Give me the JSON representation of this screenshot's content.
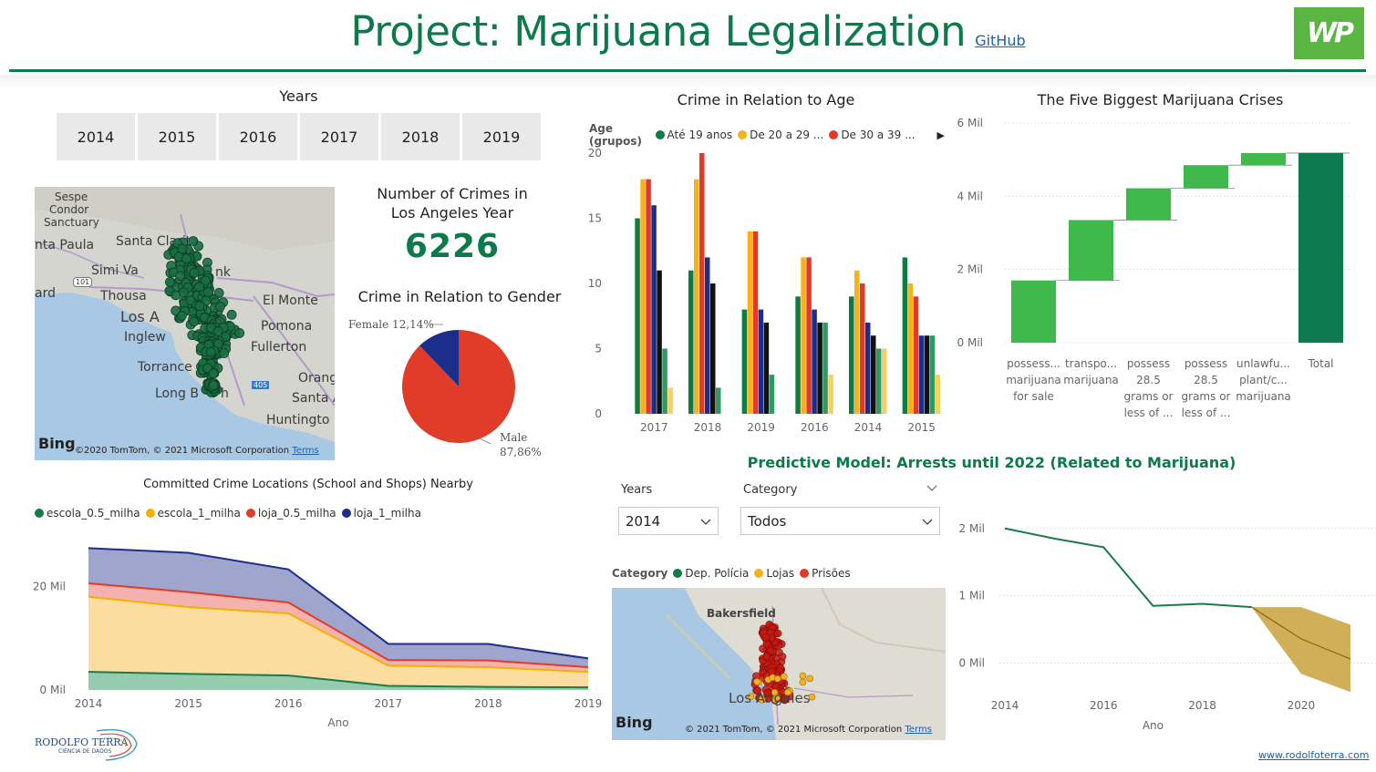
{
  "header": {
    "title": "Project: Marijuana Legalization",
    "github_label": "GitHub",
    "logo_text": "WP"
  },
  "years_slicer": {
    "title": "Years",
    "options": [
      "2014",
      "2015",
      "2016",
      "2017",
      "2018",
      "2019"
    ]
  },
  "map_la": {
    "labels": [
      "Sespe",
      "Condor",
      "Sanctuary",
      "nta Paula",
      "Santa Clarita",
      "Simi Va",
      "nk",
      "101",
      "ard",
      "Thousa",
      "El Monte",
      "Los A",
      "Pomona",
      "Inglew",
      "Fullerton",
      "Torrance",
      "Orang",
      "Long B",
      "h",
      "405",
      "Santa A",
      "Huntingto"
    ],
    "bing_label": "Bing",
    "copyright": "©2020 TomTom, © 2021 Microsoft Corporation",
    "terms_label": "Terms",
    "marker_color": "#1a6e43"
  },
  "kpi": {
    "label": "Number of Crimes in Los Angeles Year",
    "value": "6226"
  },
  "gender_pie": {
    "title": "Crime in Relation to Gender",
    "female_label": "Female 12,14%",
    "male_label": "Male",
    "male_pct_label": "87,86%",
    "chart_data": {
      "type": "pie",
      "slices": [
        {
          "name": "Male",
          "value": 87.86,
          "color": "#e03c28"
        },
        {
          "name": "Female",
          "value": 12.14,
          "color": "#1b2f8a"
        }
      ]
    }
  },
  "locations_chart": {
    "title": "Committed Crime Locations (School and Shops) Nearby",
    "xlabel": "Ano",
    "chart_data": {
      "type": "area",
      "stacked": true,
      "categories": [
        "2014",
        "2015",
        "2016",
        "2017",
        "2018",
        "2019"
      ],
      "y_ticks": [
        "0 Mil",
        "20 Mil"
      ],
      "ylim": [
        0,
        28000
      ],
      "series": [
        {
          "name": "escola_0.5_milha",
          "color": "#1a7a4a",
          "fill": "#8fc9ab",
          "values": [
            3500,
            3100,
            2800,
            800,
            600,
            500
          ]
        },
        {
          "name": "escola_1_milha",
          "color": "#f2b100",
          "fill": "#fbdc9a",
          "values": [
            14500,
            12900,
            12000,
            3900,
            3800,
            3000
          ]
        },
        {
          "name": "loja_0.5_milha",
          "color": "#e03c28",
          "fill": "#f2aeaa",
          "values": [
            2600,
            2900,
            2100,
            1100,
            1300,
            900
          ]
        },
        {
          "name": "loja_1_milha",
          "color": "#1b2f8a",
          "fill": "#9aa0c9",
          "values": [
            6800,
            7600,
            6400,
            3100,
            3200,
            1700
          ]
        }
      ]
    }
  },
  "age_chart": {
    "title": "Crime in Relation to Age",
    "legend_label": "Age (grupos)",
    "chart_data": {
      "type": "bar",
      "categories": [
        "2017",
        "2018",
        "2019",
        "2016",
        "2014",
        "2015"
      ],
      "ylim": [
        0,
        20
      ],
      "y_ticks": [
        0,
        5,
        10,
        15,
        20
      ],
      "series": [
        {
          "name": "Até 19 anos",
          "color": "#0e7a44",
          "values": [
            15,
            11,
            8,
            9,
            9,
            12
          ]
        },
        {
          "name": "De 20 a 29 ...",
          "color": "#f5b21a",
          "values": [
            18,
            18,
            14,
            12,
            11,
            10
          ]
        },
        {
          "name": "De 30 a 39 ...",
          "color": "#e23a24",
          "values": [
            18,
            20,
            14,
            12,
            10,
            9
          ]
        },
        {
          "name": "",
          "color": "#1d2d8c",
          "values": [
            16,
            12,
            8,
            8,
            7,
            6
          ]
        },
        {
          "name": "",
          "color": "#111111",
          "values": [
            11,
            10,
            7,
            7,
            6,
            6
          ]
        },
        {
          "name": "",
          "color": "#2e9a62",
          "values": [
            5,
            2,
            3,
            7,
            5,
            6
          ]
        },
        {
          "name": "",
          "color": "#f7cf5f",
          "values": [
            2,
            0,
            0,
            3,
            5,
            3
          ]
        }
      ]
    }
  },
  "crises_chart": {
    "title": "The Five Biggest Marijuana Crises",
    "chart_data": {
      "type": "bar",
      "subtype": "waterfall",
      "categories": [
        [
          "possess...",
          "marijuana",
          "for sale"
        ],
        [
          "transpo...",
          "marijuana"
        ],
        [
          "possess",
          "28.5",
          "grams or",
          "less of ..."
        ],
        [
          "possess",
          "28.5",
          "grams or",
          "less of ..."
        ],
        [
          "unlawfu...",
          "plant/c...",
          "marijuana"
        ],
        [
          "Total"
        ]
      ],
      "values": [
        1700000,
        1650000,
        870000,
        630000,
        330000,
        5180000
      ],
      "ylim": [
        0,
        6000000
      ],
      "y_ticks": [
        "0 Mil",
        "2 Mil",
        "4 Mil",
        "6 Mil"
      ],
      "colors": {
        "increase": "#3fb84c",
        "total": "#0e7a4f"
      }
    }
  },
  "predictive": {
    "title": "Predictive Model: Arrests until 2022 (Related to Marijuana)",
    "years_label": "Years",
    "years_value": "2014",
    "category_label": "Category",
    "category_value": "Todos",
    "category_legend_label": "Category",
    "category_legend": [
      {
        "name": "Dep. Polícia",
        "color": "#0e7a44"
      },
      {
        "name": "Lojas",
        "color": "#f5b21a"
      },
      {
        "name": "Prisões",
        "color": "#e23a24"
      }
    ],
    "map": {
      "labels": [
        "Bakersfield",
        "Los Angeles"
      ],
      "bing_label": "Bing",
      "copyright": "© 2021 TomTom, © 2021 Microsoft Corporation",
      "terms_label": "Terms"
    },
    "chart_data": {
      "type": "line",
      "xlabel": "Ano",
      "x_ticks": [
        "2014",
        "2016",
        "2018",
        "2020"
      ],
      "y_ticks": [
        "0 Mil",
        "1 Mil",
        "2 Mil"
      ],
      "ylim": [
        -400000,
        2200000
      ],
      "xlim": [
        2014,
        2021
      ],
      "actual": {
        "color": "#1a7a4a",
        "x": [
          2014,
          2015,
          2016,
          2017,
          2018,
          2019
        ],
        "y": [
          2000000,
          1850000,
          1720000,
          850000,
          880000,
          830000
        ]
      },
      "forecast": {
        "color": "#c69a2e",
        "x": [
          2019,
          2020,
          2021
        ],
        "y": [
          830000,
          360000,
          60000
        ],
        "upper": [
          830000,
          830000,
          570000
        ],
        "lower": [
          830000,
          -160000,
          -430000
        ]
      }
    }
  },
  "footer": {
    "logo_name": "RODOLFO TERRA",
    "logo_sub": "CIÊNCIA DE DADOS",
    "link": "www.rodolfoterra.com"
  }
}
